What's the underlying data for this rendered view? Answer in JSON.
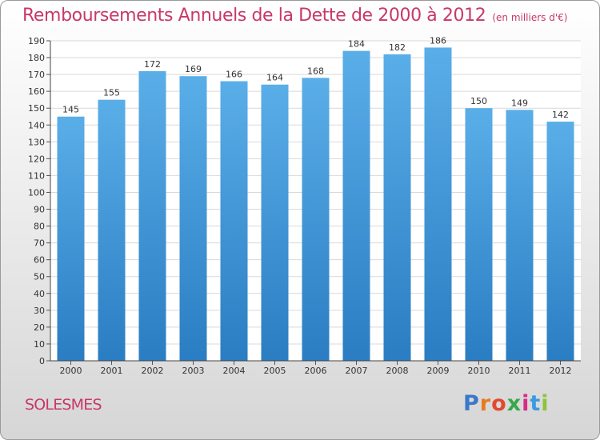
{
  "header": {
    "title": "Remboursements Annuels de la Dette de 2000 à 2012",
    "subtitle": "(en milliers d'€)"
  },
  "footer": {
    "city": "SOLESMES",
    "logo_text": "Proxiti"
  },
  "colors": {
    "title": "#c8386b",
    "bar_top": "#5aaee8",
    "bar_bottom": "#2a7dc2"
  },
  "chart_data": {
    "type": "bar",
    "title": "Remboursements Annuels de la Dette de 2000 à 2012",
    "subtitle": "(en milliers d'€)",
    "xlabel": "",
    "ylabel": "",
    "categories": [
      "2000",
      "2001",
      "2002",
      "2003",
      "2004",
      "2005",
      "2006",
      "2007",
      "2008",
      "2009",
      "2010",
      "2011",
      "2012"
    ],
    "values": [
      145,
      155,
      172,
      169,
      166,
      164,
      168,
      184,
      182,
      186,
      150,
      149,
      142
    ],
    "ylim": [
      0,
      190
    ],
    "ytick_step": 10,
    "grid": true,
    "legend": "none"
  }
}
